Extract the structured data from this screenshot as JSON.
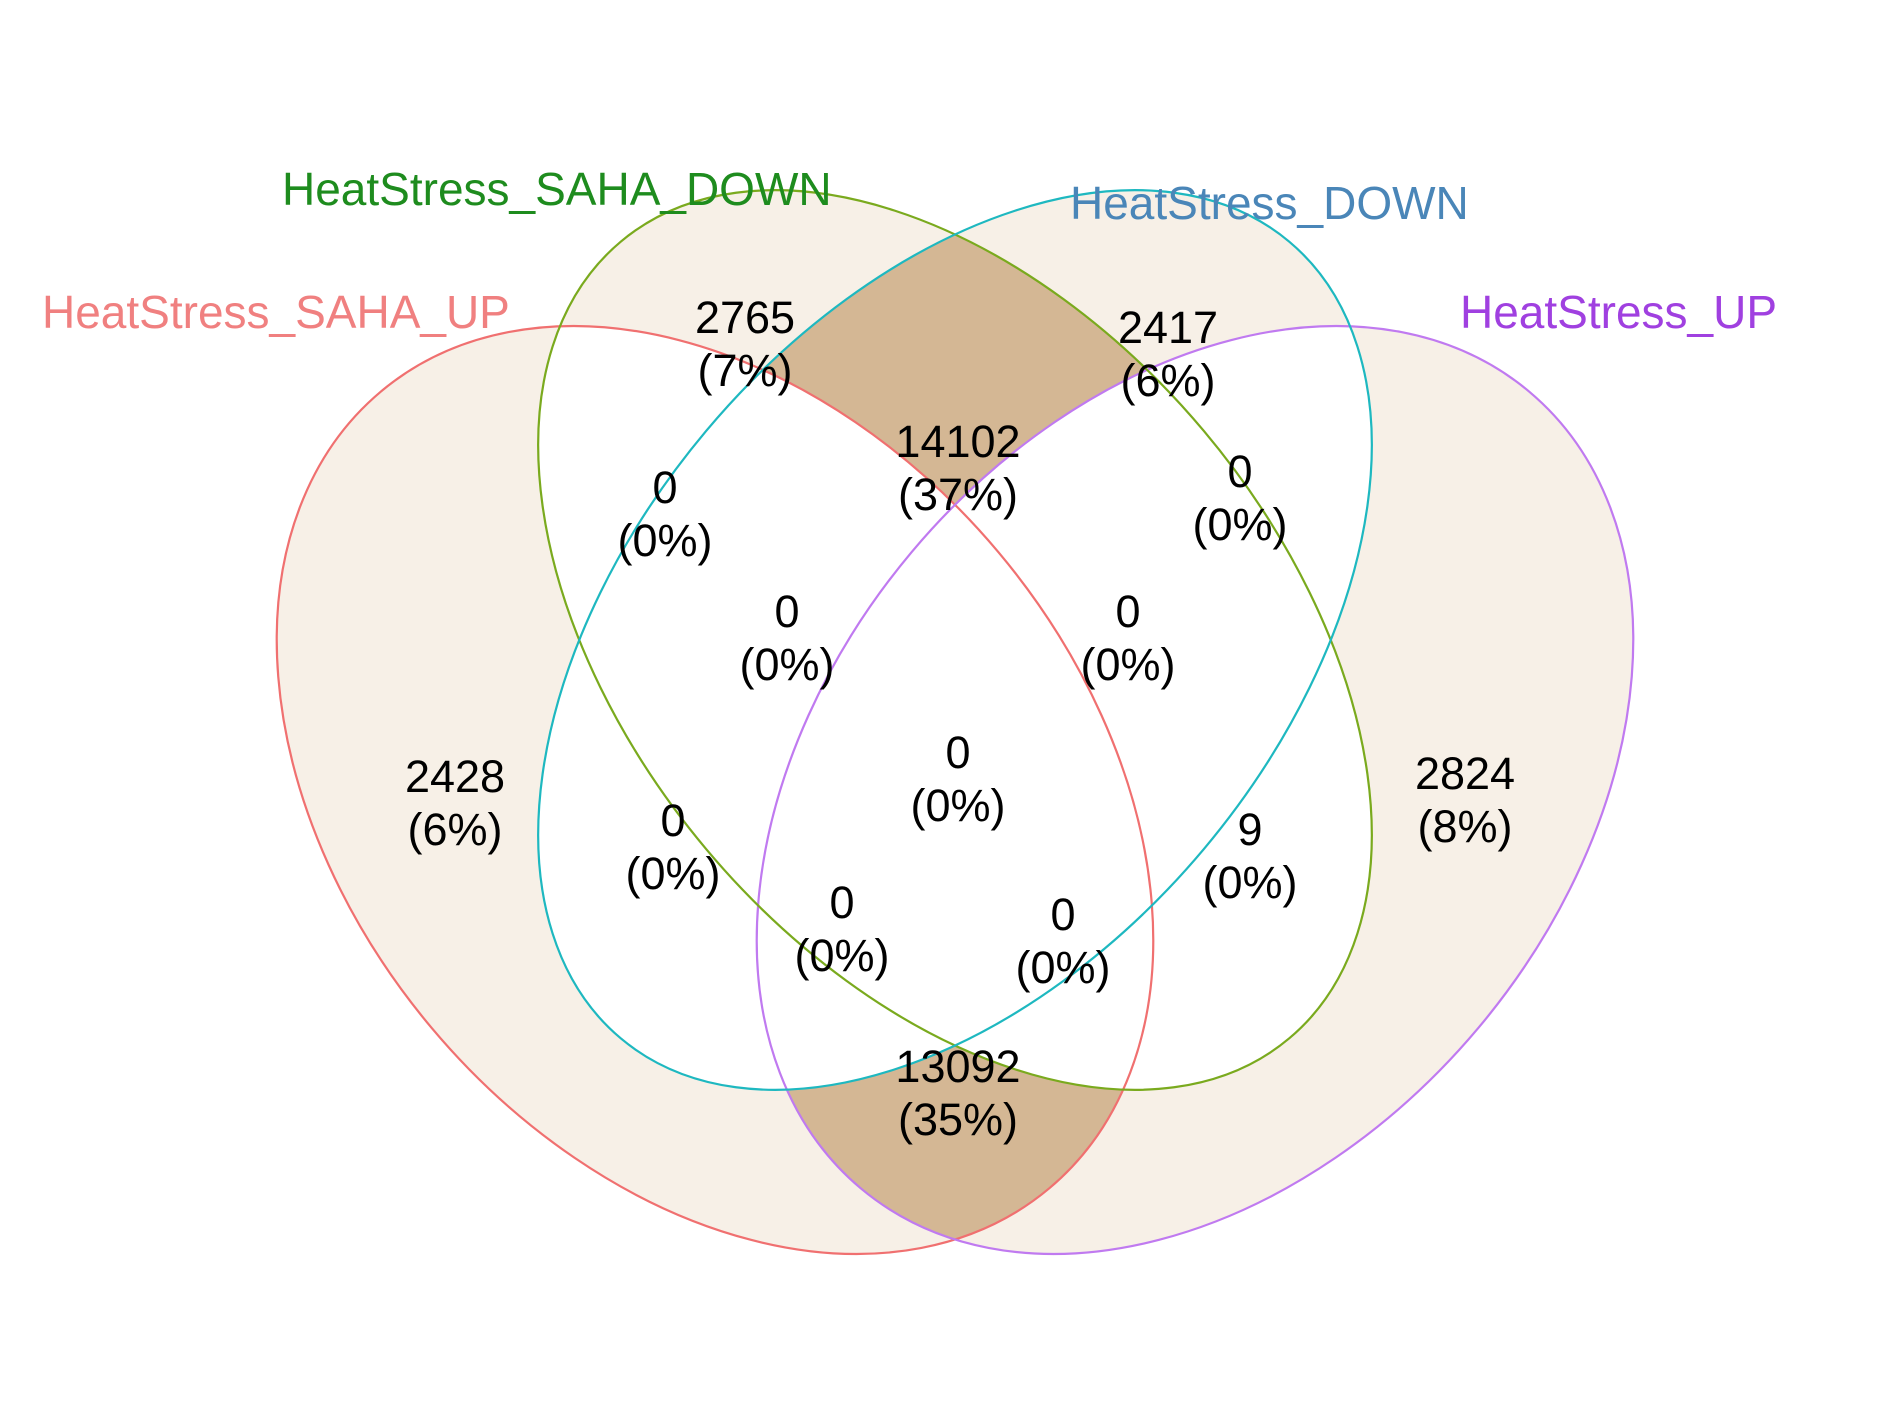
{
  "sets": [
    {
      "id": "saha_up",
      "name": "HeatStress_SAHA_UP",
      "color": "#F08080"
    },
    {
      "id": "saha_down",
      "name": "HeatStress_SAHA_DOWN",
      "color": "#1E8C1E"
    },
    {
      "id": "down",
      "name": "HeatStress_DOWN",
      "color": "#4A86B8"
    },
    {
      "id": "up",
      "name": "HeatStress_UP",
      "color": "#A040E0"
    }
  ],
  "outline_colors": {
    "saha_up": "#F07070",
    "saha_down": "#7AAA1E",
    "down": "#1EB8C0",
    "up": "#C07AF0"
  },
  "fill_colors": {
    "low": "#F7F0E7",
    "high": "#D4B794",
    "zero": "#FFFFFF"
  },
  "regions": [
    {
      "id": "saha_up_only",
      "count": "2428",
      "percent": "(6%)"
    },
    {
      "id": "saha_down_only",
      "count": "2765",
      "percent": "(7%)"
    },
    {
      "id": "down_only",
      "count": "2417",
      "percent": "(6%)"
    },
    {
      "id": "up_only",
      "count": "2824",
      "percent": "(8%)"
    },
    {
      "id": "saha_down_and_down",
      "count": "14102",
      "percent": "(37%)"
    },
    {
      "id": "saha_up_and_up",
      "count": "13092",
      "percent": "(35%)"
    },
    {
      "id": "saha_up_and_saha_down",
      "count": "0",
      "percent": "(0%)"
    },
    {
      "id": "down_and_up",
      "count": "0",
      "percent": "(0%)"
    },
    {
      "id": "saha_up_saha_down_down",
      "count": "0",
      "percent": "(0%)"
    },
    {
      "id": "saha_down_down_up",
      "count": "0",
      "percent": "(0%)"
    },
    {
      "id": "all_four",
      "count": "0",
      "percent": "(0%)"
    },
    {
      "id": "saha_up_and_down",
      "count": "0",
      "percent": "(0%)"
    },
    {
      "id": "saha_down_and_up",
      "count": "9",
      "percent": "(0%)"
    },
    {
      "id": "saha_up_down_up",
      "count": "0",
      "percent": "(0%)"
    },
    {
      "id": "saha_up_saha_down_up",
      "count": "0",
      "percent": "(0%)"
    }
  ]
}
